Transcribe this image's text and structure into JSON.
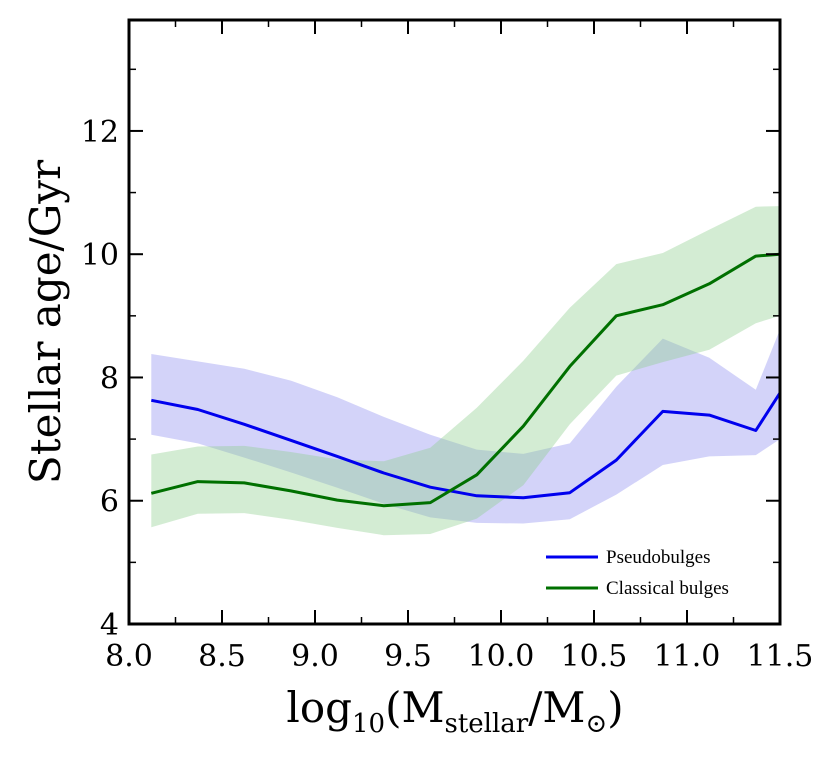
{
  "chart_data": {
    "type": "line",
    "title": "",
    "xlabel": {
      "main": "log",
      "sub1": "10",
      "paren_open": "(M",
      "sub2": "stellar",
      "slash": "/M",
      "sub3": "⊙",
      "paren_close": ")"
    },
    "ylabel": "Stellar age/Gyr",
    "xlim": [
      8.0,
      11.5
    ],
    "ylim": [
      4,
      13.8
    ],
    "xticks": [
      8.0,
      8.5,
      9.0,
      9.5,
      10.0,
      10.5,
      11.0,
      11.5
    ],
    "xtick_labels": [
      "8.0",
      "8.5",
      "9.0",
      "9.5",
      "10.0",
      "10.5",
      "11.0",
      "11.5"
    ],
    "yticks": [
      4,
      6,
      8,
      10,
      12
    ],
    "ytick_labels": [
      "4",
      "6",
      "8",
      "10",
      "12"
    ],
    "grid": false,
    "legend_position": "bottom-right",
    "series": [
      {
        "name": "Pseudobulges",
        "color": "#0000ee",
        "band_color": "#8c8cf0",
        "x": [
          8.12,
          8.37,
          8.62,
          8.87,
          9.12,
          9.37,
          9.62,
          9.87,
          10.12,
          10.37,
          10.62,
          10.87,
          11.12,
          11.37,
          11.5
        ],
        "y": [
          7.63,
          7.48,
          7.24,
          6.98,
          6.72,
          6.45,
          6.22,
          6.08,
          6.05,
          6.13,
          6.66,
          7.45,
          7.39,
          7.14,
          7.75
        ],
        "y_low": [
          7.07,
          6.93,
          6.7,
          6.46,
          6.21,
          5.95,
          5.73,
          5.64,
          5.63,
          5.7,
          6.1,
          6.58,
          6.72,
          6.74,
          7.0
        ],
        "y_high": [
          8.38,
          8.26,
          8.14,
          7.95,
          7.68,
          7.36,
          7.07,
          6.83,
          6.76,
          6.93,
          7.85,
          8.63,
          8.32,
          7.8,
          8.78
        ]
      },
      {
        "name": "Classical bulges",
        "color": "#007000",
        "band_color": "#8ccc8c",
        "x": [
          8.12,
          8.37,
          8.62,
          8.87,
          9.12,
          9.37,
          9.62,
          9.87,
          10.12,
          10.37,
          10.62,
          10.87,
          11.12,
          11.37,
          11.5
        ],
        "y": [
          6.12,
          6.31,
          6.29,
          6.16,
          6.01,
          5.92,
          5.97,
          6.42,
          7.21,
          8.18,
          9.0,
          9.18,
          9.52,
          9.97,
          10.0
        ],
        "y_low": [
          5.57,
          5.79,
          5.8,
          5.69,
          5.56,
          5.44,
          5.46,
          5.71,
          6.25,
          7.24,
          8.03,
          8.25,
          8.45,
          8.88,
          9.0
        ],
        "y_high": [
          6.75,
          6.88,
          6.89,
          6.79,
          6.67,
          6.64,
          6.86,
          7.51,
          8.27,
          9.13,
          9.84,
          10.02,
          10.4,
          10.77,
          10.78
        ]
      }
    ]
  }
}
